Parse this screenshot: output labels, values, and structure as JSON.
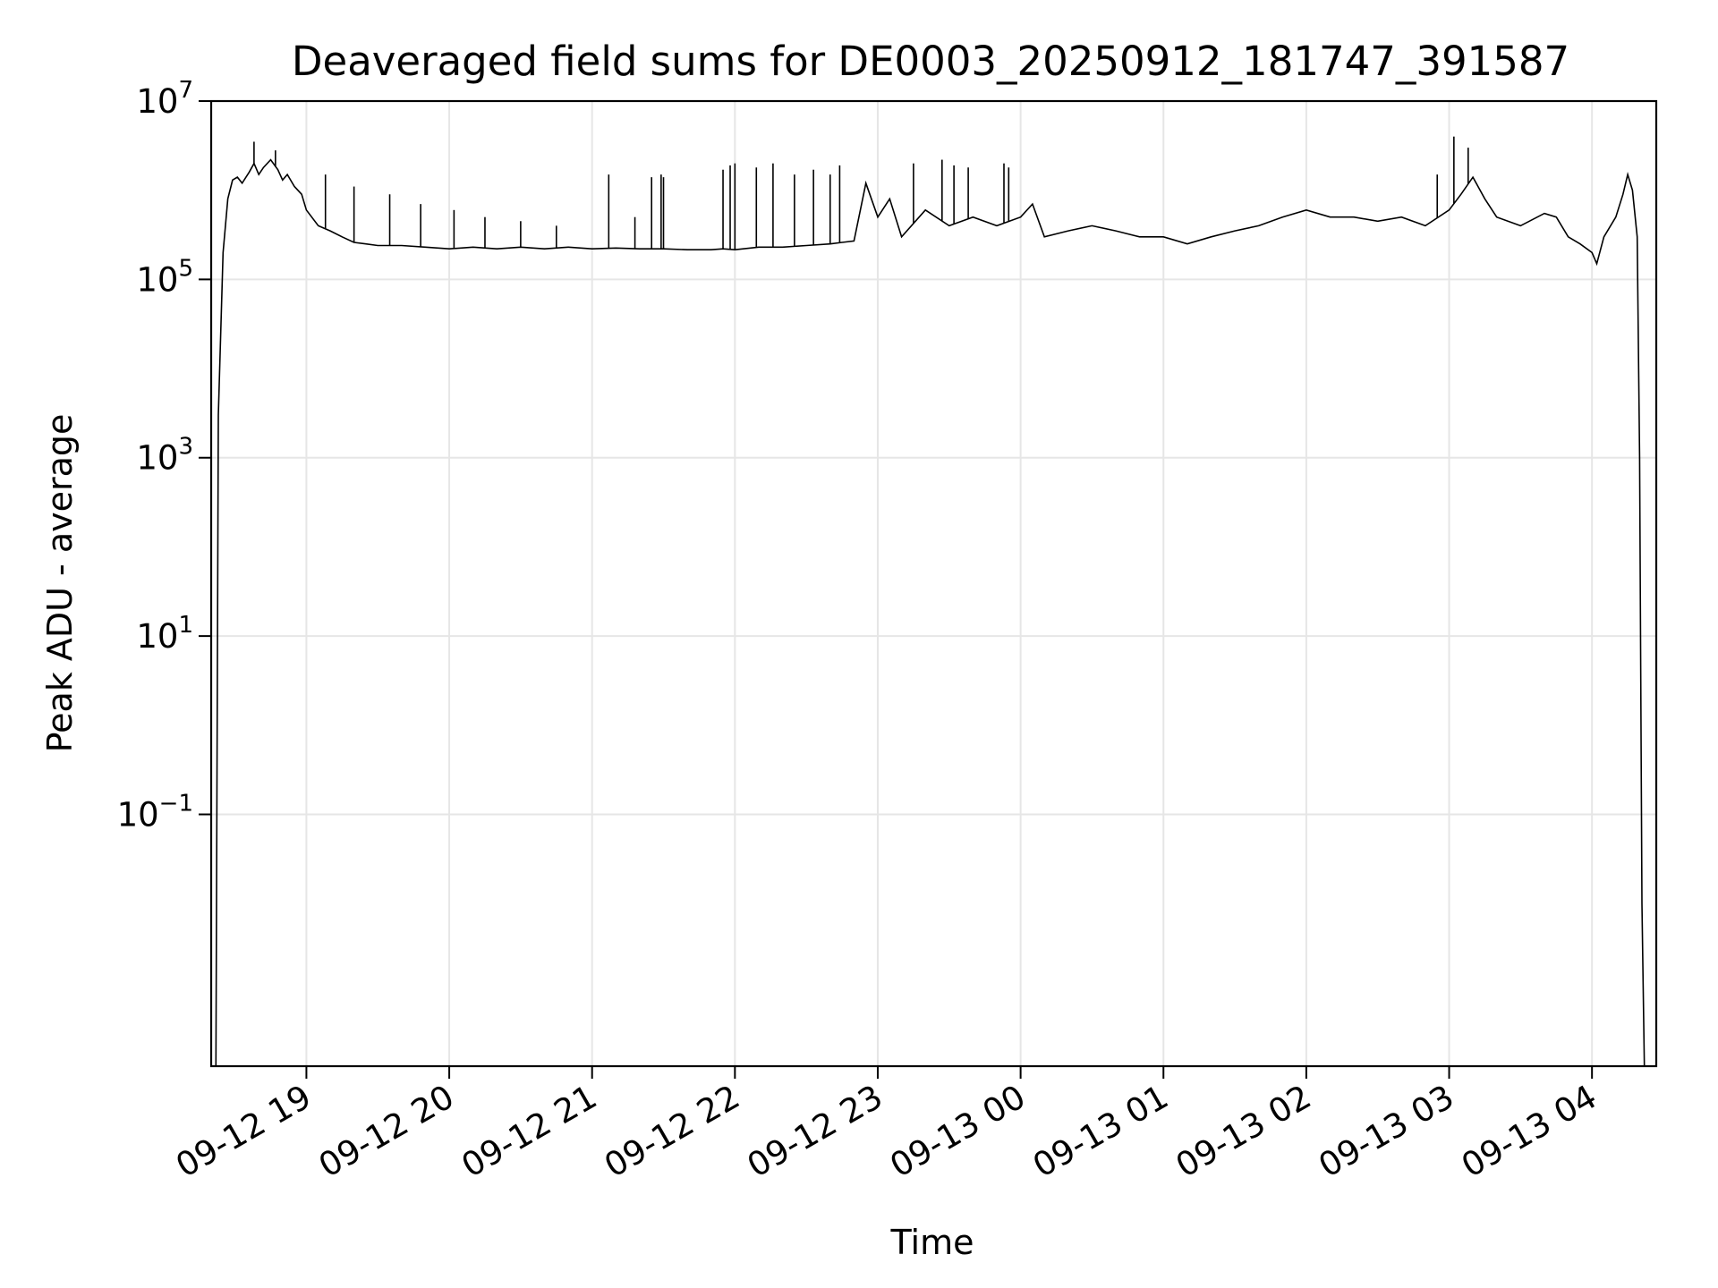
{
  "chart_data": {
    "type": "line",
    "title": "Deaveraged field sums for DE0003_20250912_181747_391587",
    "xlabel": "Time",
    "ylabel": "Peak ADU - average",
    "xscale": "time",
    "yscale": "log",
    "xlim": [
      "2025-09-12 18:20",
      "2025-09-13 04:27"
    ],
    "ylim": [
      0.00015,
      10000000
    ],
    "grid": true,
    "x_ticks": [
      {
        "t": "2025-09-12 19:00",
        "label": "09-12 19"
      },
      {
        "t": "2025-09-12 20:00",
        "label": "09-12 20"
      },
      {
        "t": "2025-09-12 21:00",
        "label": "09-12 21"
      },
      {
        "t": "2025-09-12 22:00",
        "label": "09-12 22"
      },
      {
        "t": "2025-09-12 23:00",
        "label": "09-12 23"
      },
      {
        "t": "2025-09-13 00:00",
        "label": "09-13 00"
      },
      {
        "t": "2025-09-13 01:00",
        "label": "09-13 01"
      },
      {
        "t": "2025-09-13 02:00",
        "label": "09-13 02"
      },
      {
        "t": "2025-09-13 03:00",
        "label": "09-13 03"
      },
      {
        "t": "2025-09-13 04:00",
        "label": "09-13 04"
      }
    ],
    "y_ticks": [
      {
        "value": 10000000,
        "base": "10",
        "exp": "7"
      },
      {
        "value": 100000,
        "base": "10",
        "exp": "5"
      },
      {
        "value": 1000,
        "base": "10",
        "exp": "3"
      },
      {
        "value": 10,
        "base": "10",
        "exp": "1"
      },
      {
        "value": 0.1,
        "base": "10",
        "exp": "−1"
      }
    ],
    "series": [
      {
        "color": "#000000",
        "x": [
          "2025-09-12 18:22",
          "2025-09-12 18:23",
          "2025-09-12 18:25",
          "2025-09-12 18:27",
          "2025-09-12 18:29",
          "2025-09-12 18:31",
          "2025-09-12 18:33",
          "2025-09-12 18:36",
          "2025-09-12 18:38",
          "2025-09-12 18:40",
          "2025-09-12 18:42",
          "2025-09-12 18:45",
          "2025-09-12 18:48",
          "2025-09-12 18:50",
          "2025-09-12 18:52",
          "2025-09-12 18:55",
          "2025-09-12 18:58",
          "2025-09-12 19:00",
          "2025-09-12 19:05",
          "2025-09-12 19:10",
          "2025-09-12 19:15",
          "2025-09-12 19:20",
          "2025-09-12 19:25",
          "2025-09-12 19:30",
          "2025-09-12 19:40",
          "2025-09-12 19:50",
          "2025-09-12 20:00",
          "2025-09-12 20:10",
          "2025-09-12 20:20",
          "2025-09-12 20:30",
          "2025-09-12 20:40",
          "2025-09-12 20:50",
          "2025-09-12 21:00",
          "2025-09-12 21:10",
          "2025-09-12 21:20",
          "2025-09-12 21:30",
          "2025-09-12 21:40",
          "2025-09-12 21:50",
          "2025-09-12 21:55",
          "2025-09-12 22:00",
          "2025-09-12 22:10",
          "2025-09-12 22:20",
          "2025-09-12 22:30",
          "2025-09-12 22:40",
          "2025-09-12 22:45",
          "2025-09-12 22:50",
          "2025-09-12 22:55",
          "2025-09-12 23:00",
          "2025-09-12 23:05",
          "2025-09-12 23:10",
          "2025-09-12 23:20",
          "2025-09-12 23:30",
          "2025-09-12 23:40",
          "2025-09-12 23:50",
          "2025-09-13 00:00",
          "2025-09-13 00:05",
          "2025-09-13 00:10",
          "2025-09-13 00:20",
          "2025-09-13 00:30",
          "2025-09-13 00:40",
          "2025-09-13 00:50",
          "2025-09-13 01:00",
          "2025-09-13 01:10",
          "2025-09-13 01:20",
          "2025-09-13 01:30",
          "2025-09-13 01:40",
          "2025-09-13 01:50",
          "2025-09-13 02:00",
          "2025-09-13 02:10",
          "2025-09-13 02:20",
          "2025-09-13 02:30",
          "2025-09-13 02:40",
          "2025-09-13 02:50",
          "2025-09-13 03:00",
          "2025-09-13 03:05",
          "2025-09-13 03:10",
          "2025-09-13 03:15",
          "2025-09-13 03:20",
          "2025-09-13 03:30",
          "2025-09-13 03:40",
          "2025-09-13 03:45",
          "2025-09-13 03:50",
          "2025-09-13 03:55",
          "2025-09-13 04:00",
          "2025-09-13 04:02",
          "2025-09-13 04:05",
          "2025-09-13 04:10",
          "2025-09-13 04:13",
          "2025-09-13 04:15",
          "2025-09-13 04:17",
          "2025-09-13 04:19",
          "2025-09-13 04:20",
          "2025-09-13 04:21",
          "2025-09-13 04:22"
        ],
        "y": [
          0.0001,
          3000,
          200000,
          800000,
          1300000,
          1400000,
          1200000,
          1600000,
          2000000,
          1500000,
          1800000,
          2200000,
          1700000,
          1300000,
          1500000,
          1100000,
          900000,
          600000,
          400000,
          350000,
          300000,
          260000,
          250000,
          240000,
          240000,
          230000,
          220000,
          230000,
          220000,
          230000,
          220000,
          230000,
          220000,
          225000,
          220000,
          220000,
          215000,
          215000,
          220000,
          215000,
          230000,
          230000,
          240000,
          250000,
          260000,
          270000,
          1200000,
          500000,
          800000,
          300000,
          600000,
          400000,
          500000,
          400000,
          500000,
          700000,
          300000,
          350000,
          400000,
          350000,
          300000,
          300000,
          250000,
          300000,
          350000,
          400000,
          500000,
          600000,
          500000,
          500000,
          450000,
          500000,
          400000,
          600000,
          900000,
          1400000,
          800000,
          500000,
          400000,
          550000,
          500000,
          300000,
          250000,
          200000,
          150000,
          300000,
          500000,
          900000,
          1500000,
          1000000,
          300000,
          1000,
          0.01,
          0.0001
        ]
      }
    ],
    "spikes": [
      {
        "x": "2025-09-12 18:38",
        "y": 3500000
      },
      {
        "x": "2025-09-12 18:47",
        "y": 2800000
      },
      {
        "x": "2025-09-12 19:08",
        "y": 1500000
      },
      {
        "x": "2025-09-12 19:20",
        "y": 1100000
      },
      {
        "x": "2025-09-12 19:35",
        "y": 900000
      },
      {
        "x": "2025-09-12 19:48",
        "y": 700000
      },
      {
        "x": "2025-09-12 20:02",
        "y": 600000
      },
      {
        "x": "2025-09-12 20:15",
        "y": 500000
      },
      {
        "x": "2025-09-12 20:30",
        "y": 450000
      },
      {
        "x": "2025-09-12 20:45",
        "y": 400000
      },
      {
        "x": "2025-09-12 21:07",
        "y": 1500000
      },
      {
        "x": "2025-09-12 21:18",
        "y": 500000
      },
      {
        "x": "2025-09-12 21:25",
        "y": 1400000
      },
      {
        "x": "2025-09-12 21:29",
        "y": 1500000
      },
      {
        "x": "2025-09-12 21:30",
        "y": 1400000
      },
      {
        "x": "2025-09-12 21:55",
        "y": 1700000
      },
      {
        "x": "2025-09-12 21:58",
        "y": 1900000
      },
      {
        "x": "2025-09-12 22:00",
        "y": 2000000
      },
      {
        "x": "2025-09-12 22:09",
        "y": 1800000
      },
      {
        "x": "2025-09-12 22:16",
        "y": 2000000
      },
      {
        "x": "2025-09-12 22:25",
        "y": 1500000
      },
      {
        "x": "2025-09-12 22:33",
        "y": 1700000
      },
      {
        "x": "2025-09-12 22:40",
        "y": 1500000
      },
      {
        "x": "2025-09-12 22:44",
        "y": 1900000
      },
      {
        "x": "2025-09-12 23:15",
        "y": 2000000
      },
      {
        "x": "2025-09-12 23:27",
        "y": 2200000
      },
      {
        "x": "2025-09-12 23:32",
        "y": 1900000
      },
      {
        "x": "2025-09-12 23:38",
        "y": 1800000
      },
      {
        "x": "2025-09-12 23:53",
        "y": 2000000
      },
      {
        "x": "2025-09-12 23:55",
        "y": 1800000
      },
      {
        "x": "2025-09-13 02:55",
        "y": 1500000
      },
      {
        "x": "2025-09-13 03:02",
        "y": 4000000
      },
      {
        "x": "2025-09-13 03:08",
        "y": 3000000
      }
    ]
  }
}
